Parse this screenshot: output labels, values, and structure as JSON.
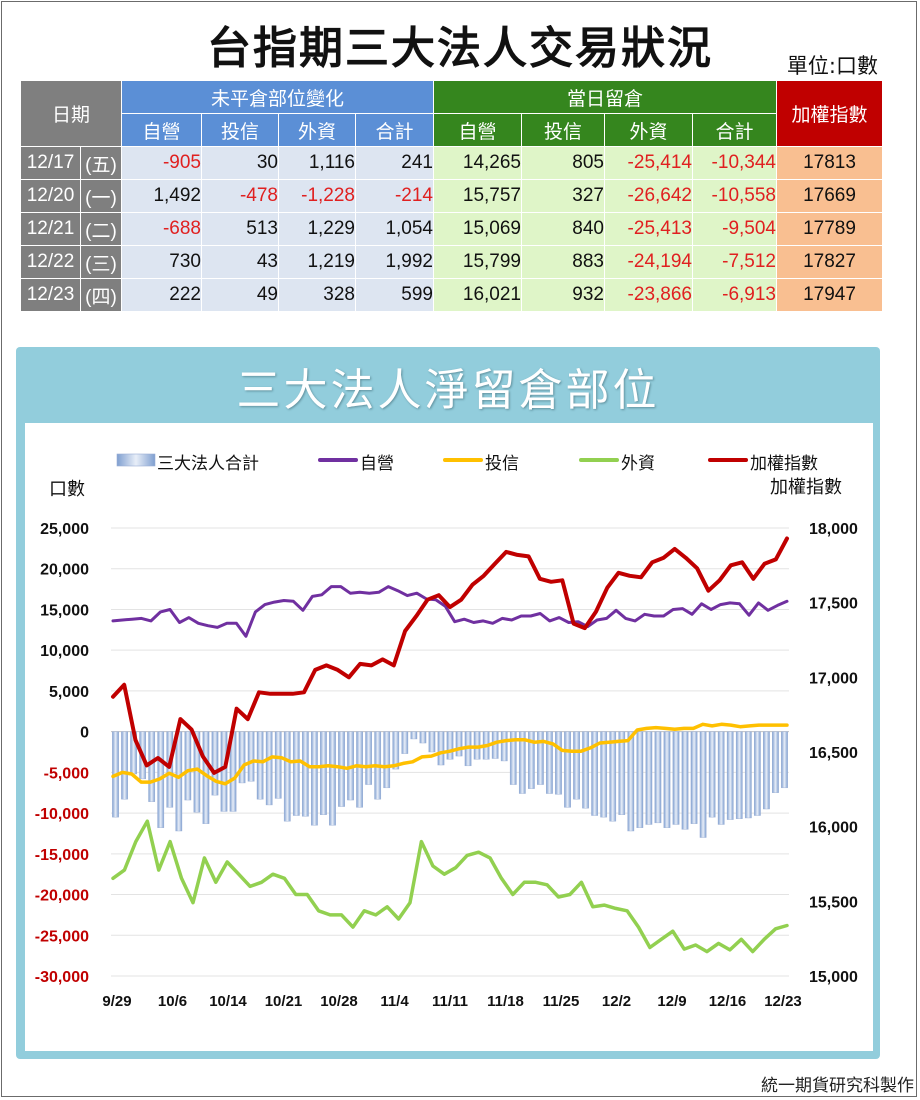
{
  "title": "台指期三大法人交易狀況",
  "unit_label": "單位:口數",
  "table": {
    "date_header": "日期",
    "group_headers": {
      "open_change": "未平倉部位變化",
      "daily_position": "當日留倉",
      "index": "加權指數"
    },
    "sub_headers": [
      "自營",
      "投信",
      "外資",
      "合計",
      "自營",
      "投信",
      "外資",
      "合計"
    ],
    "rows": [
      {
        "date": "12/17",
        "weekday": "(五)",
        "cells": [
          "-905",
          "30",
          "1,116",
          "241",
          "14,265",
          "805",
          "-25,414",
          "-10,344"
        ],
        "index": "17813"
      },
      {
        "date": "12/20",
        "weekday": "(一)",
        "cells": [
          "1,492",
          "-478",
          "-1,228",
          "-214",
          "15,757",
          "327",
          "-26,642",
          "-10,558"
        ],
        "index": "17669"
      },
      {
        "date": "12/21",
        "weekday": "(二)",
        "cells": [
          "-688",
          "513",
          "1,229",
          "1,054",
          "15,069",
          "840",
          "-25,413",
          "-9,504"
        ],
        "index": "17789"
      },
      {
        "date": "12/22",
        "weekday": "(三)",
        "cells": [
          "730",
          "43",
          "1,219",
          "1,992",
          "15,799",
          "883",
          "-24,194",
          "-7,512"
        ],
        "index": "17827"
      },
      {
        "date": "12/23",
        "weekday": "(四)",
        "cells": [
          "222",
          "49",
          "328",
          "599",
          "16,021",
          "932",
          "-23,866",
          "-6,913"
        ],
        "index": "17947"
      }
    ]
  },
  "chart_title": "三大法人淨留倉部位",
  "credit": "統一期貨研究科製作",
  "colors": {
    "negative": "#e02020",
    "prop": "#7030a0",
    "trust": "#ffc000",
    "foreign": "#92d050",
    "index": "#c00000",
    "bars": "#b4c6e7"
  },
  "chart_data": {
    "type": "bar+line",
    "title": "三大法人淨留倉部位",
    "ylabel_left": "口數",
    "ylabel_right": "加權指數",
    "ylim_left": [
      -30000,
      25000
    ],
    "ylim_right": [
      15000,
      18000
    ],
    "yticks_left": [
      "25,000",
      "20,000",
      "15,000",
      "10,000",
      "5,000",
      "0",
      "-5,000",
      "-10,000",
      "-15,000",
      "-20,000",
      "-25,000",
      "-30,000"
    ],
    "yticks_right": [
      "18,000",
      "17,500",
      "17,000",
      "16,500",
      "16,000",
      "15,500",
      "15,000"
    ],
    "xtick_labels": [
      "9/29",
      "10/6",
      "10/14",
      "10/21",
      "10/28",
      "11/4",
      "11/11",
      "11/18",
      "11/25",
      "12/2",
      "12/9",
      "12/16",
      "12/23"
    ],
    "legend_position": "top",
    "grid": true,
    "series": [
      {
        "name": "三大法人合計",
        "type": "bar",
        "axis": "left",
        "values": [
          -10500,
          -8300,
          -5200,
          -5800,
          -8600,
          -11800,
          -9300,
          -12200,
          -8400,
          -9900,
          -11300,
          -7800,
          -9800,
          -9800,
          -6300,
          -6100,
          -8300,
          -9000,
          -8200,
          -11000,
          -10300,
          -10400,
          -11500,
          -10200,
          -11500,
          -9200,
          -8400,
          -9300,
          -6500,
          -8300,
          -6900,
          -4600,
          -2700,
          -900,
          -1400,
          -2500,
          -4100,
          -3400,
          -3000,
          -4200,
          -3400,
          -3400,
          -3300,
          -3600,
          -6500,
          -7600,
          -7000,
          -6500,
          -7600,
          -7700,
          -9300,
          -8300,
          -9400,
          -10300,
          -10500,
          -11000,
          -10200,
          -12200,
          -11800,
          -11400,
          -11200,
          -11800,
          -11400,
          -12000,
          -11300,
          -13000,
          -10500,
          -11400,
          -10800,
          -10700,
          -10600,
          -10300,
          -9500,
          -7500,
          -6900
        ]
      },
      {
        "name": "自營",
        "type": "line",
        "axis": "left",
        "values": [
          13600,
          13700,
          13800,
          13900,
          13600,
          14700,
          15000,
          13400,
          14000,
          13300,
          13000,
          12800,
          13300,
          13300,
          11700,
          14700,
          15600,
          15900,
          16100,
          16000,
          14900,
          16600,
          16800,
          17800,
          17800,
          17000,
          17100,
          17000,
          17100,
          17800,
          17300,
          16700,
          17000,
          16300,
          16200,
          15400,
          13500,
          13800,
          13400,
          13600,
          13300,
          13900,
          13700,
          14200,
          14200,
          14500,
          13600,
          14000,
          13400,
          13500,
          12900,
          13700,
          13900,
          14900,
          13900,
          13600,
          14400,
          14200,
          14200,
          15000,
          15100,
          14400,
          15700,
          15000,
          15600,
          15800,
          15700,
          14300,
          15800,
          14900,
          15500,
          16000
        ]
      },
      {
        "name": "投信",
        "type": "line",
        "axis": "left",
        "values": [
          -5500,
          -5000,
          -5200,
          -6200,
          -6200,
          -5800,
          -5100,
          -5600,
          -4800,
          -4600,
          -5400,
          -6100,
          -6400,
          -5700,
          -4100,
          -3600,
          -3700,
          -3100,
          -3200,
          -3700,
          -3600,
          -4300,
          -4300,
          -4200,
          -4300,
          -4500,
          -4200,
          -4300,
          -4200,
          -4300,
          -4200,
          -3900,
          -3700,
          -3100,
          -3000,
          -2600,
          -2400,
          -2100,
          -1900,
          -1900,
          -1700,
          -1300,
          -1100,
          -1000,
          -1000,
          -1300,
          -1200,
          -1500,
          -2300,
          -2400,
          -2400,
          -2000,
          -1400,
          -1300,
          -1200,
          -1100,
          200,
          400,
          500,
          400,
          300,
          400,
          400,
          900,
          700,
          900,
          800,
          600,
          700,
          800,
          800,
          800,
          800
        ]
      },
      {
        "name": "外資",
        "type": "line",
        "axis": "left",
        "values": [
          -18000,
          -17000,
          -13500,
          -11000,
          -17000,
          -13500,
          -18000,
          -21000,
          -15500,
          -18500,
          -16000,
          -17500,
          -19000,
          -18500,
          -17500,
          -18000,
          -20000,
          -20000,
          -22000,
          -22500,
          -22500,
          -24000,
          -22000,
          -22500,
          -21500,
          -23000,
          -21000,
          -13500,
          -16500,
          -17500,
          -16700,
          -15200,
          -14800,
          -15500,
          -18000,
          -20000,
          -18500,
          -18500,
          -18800,
          -20300,
          -20000,
          -18500,
          -21500,
          -21300,
          -21700,
          -22000,
          -24000,
          -26500,
          -25500,
          -24500,
          -26700,
          -26200,
          -27000,
          -26000,
          -26800,
          -25500,
          -27000,
          -25500,
          -24200,
          -23800
        ]
      },
      {
        "name": "加權指數",
        "type": "line",
        "axis": "right",
        "values": [
          16870,
          16950,
          16580,
          16410,
          16460,
          16400,
          16720,
          16650,
          16470,
          16360,
          16400,
          16790,
          16720,
          16900,
          16890,
          16890,
          16890,
          16900,
          17050,
          17080,
          17050,
          17000,
          17090,
          17080,
          17120,
          17080,
          17310,
          17410,
          17520,
          17550,
          17470,
          17520,
          17620,
          17680,
          17760,
          17840,
          17820,
          17810,
          17660,
          17640,
          17650,
          17360,
          17330,
          17440,
          17600,
          17700,
          17680,
          17670,
          17770,
          17800,
          17860,
          17800,
          17730,
          17580,
          17650,
          17750,
          17770,
          17660,
          17760,
          17790,
          17930
        ]
      }
    ]
  }
}
